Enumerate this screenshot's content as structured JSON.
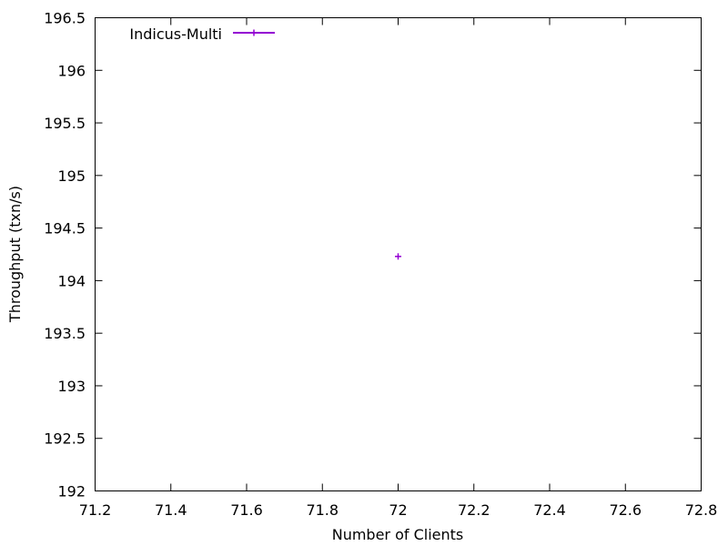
{
  "chart_data": {
    "type": "scatter",
    "title": "",
    "xlabel": "Number of Clients",
    "ylabel": "Throughput (txn/s)",
    "xlim": [
      71.2,
      72.8
    ],
    "ylim": [
      192,
      196.5
    ],
    "x_ticks": [
      "71.2",
      "71.4",
      "71.6",
      "71.8",
      "72",
      "72.2",
      "72.4",
      "72.6",
      "72.8"
    ],
    "y_ticks": [
      "192",
      "192.5",
      "193",
      "193.5",
      "194",
      "194.5",
      "195",
      "195.5",
      "196",
      "196.5"
    ],
    "grid": false,
    "legend_position": "top-left",
    "series": [
      {
        "name": "Indicus-Multi",
        "color": "#9400d3",
        "marker": "plus",
        "points": [
          {
            "x": 72,
            "y": 194.23
          }
        ]
      }
    ]
  }
}
